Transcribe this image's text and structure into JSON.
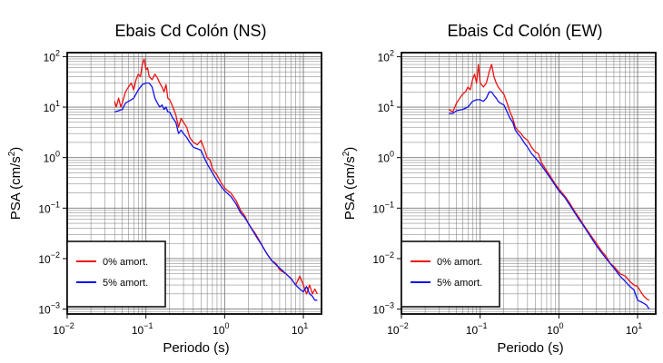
{
  "colors": {
    "undamped": "#ee1111",
    "damped": "#1111ee",
    "grid": "#777777",
    "frame": "#000000"
  },
  "chart_data": [
    {
      "type": "line",
      "title": "Ebais Cd Colón (NS)",
      "xlabel": "Periodo (s)",
      "ylabel_base": "PSA (cm/s",
      "ylabel_sup": "2",
      "ylabel_end": ")",
      "x_scale": "log",
      "y_scale": "log",
      "xlim": [
        0.01,
        17
      ],
      "ylim": [
        0.0008,
        120
      ],
      "x_ticks": [
        {
          "base": "10",
          "exp": "−2",
          "value": 0.01
        },
        {
          "base": "10",
          "exp": "−1",
          "value": 0.1
        },
        {
          "base": "10",
          "exp": "0",
          "value": 1
        },
        {
          "base": "10",
          "exp": "1",
          "value": 10
        }
      ],
      "y_ticks": [
        {
          "base": "10",
          "exp": "2",
          "value": 100
        },
        {
          "base": "10",
          "exp": "1",
          "value": 10
        },
        {
          "base": "10",
          "exp": "0",
          "value": 1
        },
        {
          "base": "10",
          "exp": "−1",
          "value": 0.1
        },
        {
          "base": "10",
          "exp": "−2",
          "value": 0.01
        },
        {
          "base": "10",
          "exp": "−3",
          "value": 0.001
        }
      ],
      "grid": true,
      "legend_position": "bottom-left",
      "series": [
        {
          "name": "0% amort.",
          "color": "#ee1111",
          "points": [
            [
              0.04,
              13
            ],
            [
              0.042,
              10
            ],
            [
              0.045,
              15
            ],
            [
              0.048,
              10
            ],
            [
              0.05,
              12
            ],
            [
              0.055,
              20
            ],
            [
              0.06,
              25
            ],
            [
              0.065,
              30
            ],
            [
              0.07,
              22
            ],
            [
              0.075,
              35
            ],
            [
              0.08,
              45
            ],
            [
              0.085,
              40
            ],
            [
              0.09,
              70
            ],
            [
              0.095,
              90
            ],
            [
              0.1,
              55
            ],
            [
              0.105,
              60
            ],
            [
              0.11,
              40
            ],
            [
              0.12,
              35
            ],
            [
              0.13,
              45
            ],
            [
              0.14,
              38
            ],
            [
              0.15,
              30
            ],
            [
              0.16,
              25
            ],
            [
              0.17,
              20
            ],
            [
              0.18,
              28
            ],
            [
              0.19,
              15
            ],
            [
              0.2,
              14
            ],
            [
              0.22,
              10
            ],
            [
              0.24,
              7
            ],
            [
              0.26,
              4
            ],
            [
              0.28,
              6
            ],
            [
              0.3,
              5
            ],
            [
              0.33,
              4
            ],
            [
              0.36,
              2.5
            ],
            [
              0.4,
              2
            ],
            [
              0.45,
              1.8
            ],
            [
              0.5,
              2.2
            ],
            [
              0.55,
              1.5
            ],
            [
              0.6,
              1
            ],
            [
              0.65,
              0.9
            ],
            [
              0.7,
              0.6
            ],
            [
              0.8,
              0.45
            ],
            [
              0.9,
              0.32
            ],
            [
              1.0,
              0.25
            ],
            [
              1.1,
              0.22
            ],
            [
              1.2,
              0.2
            ],
            [
              1.4,
              0.14
            ],
            [
              1.6,
              0.09
            ],
            [
              1.8,
              0.07
            ],
            [
              2.0,
              0.05
            ],
            [
              2.2,
              0.04
            ],
            [
              2.5,
              0.03
            ],
            [
              2.8,
              0.022
            ],
            [
              3.2,
              0.015
            ],
            [
              3.5,
              0.012
            ],
            [
              4.0,
              0.009
            ],
            [
              4.5,
              0.008
            ],
            [
              5.0,
              0.006
            ],
            [
              6.0,
              0.005
            ],
            [
              7.0,
              0.004
            ],
            [
              8.0,
              0.003
            ],
            [
              9.0,
              0.0045
            ],
            [
              10,
              0.003
            ],
            [
              11,
              0.002
            ],
            [
              12,
              0.003
            ],
            [
              13,
              0.002
            ],
            [
              14,
              0.0025
            ],
            [
              15,
              0.002
            ]
          ]
        },
        {
          "name": "5% amort.",
          "color": "#1111ee",
          "points": [
            [
              0.04,
              8
            ],
            [
              0.045,
              8.5
            ],
            [
              0.05,
              9
            ],
            [
              0.055,
              12
            ],
            [
              0.06,
              13
            ],
            [
              0.065,
              14
            ],
            [
              0.07,
              15
            ],
            [
              0.08,
              22
            ],
            [
              0.09,
              28
            ],
            [
              0.1,
              30
            ],
            [
              0.11,
              30
            ],
            [
              0.12,
              25
            ],
            [
              0.13,
              15
            ],
            [
              0.14,
              12
            ],
            [
              0.15,
              10
            ],
            [
              0.16,
              11
            ],
            [
              0.17,
              9
            ],
            [
              0.18,
              10
            ],
            [
              0.19,
              8
            ],
            [
              0.2,
              8
            ],
            [
              0.22,
              6
            ],
            [
              0.24,
              5
            ],
            [
              0.26,
              3
            ],
            [
              0.28,
              3.5
            ],
            [
              0.3,
              3
            ],
            [
              0.33,
              2.5
            ],
            [
              0.36,
              2
            ],
            [
              0.4,
              1.6
            ],
            [
              0.45,
              1.5
            ],
            [
              0.5,
              1.4
            ],
            [
              0.55,
              1
            ],
            [
              0.6,
              0.75
            ],
            [
              0.7,
              0.5
            ],
            [
              0.8,
              0.35
            ],
            [
              0.9,
              0.27
            ],
            [
              1.0,
              0.22
            ],
            [
              1.2,
              0.17
            ],
            [
              1.4,
              0.12
            ],
            [
              1.6,
              0.08
            ],
            [
              1.8,
              0.065
            ],
            [
              2.0,
              0.05
            ],
            [
              2.5,
              0.028
            ],
            [
              3.0,
              0.018
            ],
            [
              3.5,
              0.012
            ],
            [
              4.0,
              0.009
            ],
            [
              5.0,
              0.0065
            ],
            [
              6.0,
              0.005
            ],
            [
              7.0,
              0.004
            ],
            [
              8.0,
              0.003
            ],
            [
              9.0,
              0.0025
            ],
            [
              10,
              0.0022
            ],
            [
              11,
              0.0028
            ],
            [
              12,
              0.002
            ],
            [
              13,
              0.0018
            ],
            [
              14,
              0.0015
            ],
            [
              15,
              0.0015
            ]
          ]
        }
      ]
    },
    {
      "type": "line",
      "title": "Ebais Cd Colón (EW)",
      "xlabel": "Periodo (s)",
      "ylabel_base": "PSA (cm/s",
      "ylabel_sup": "2",
      "ylabel_end": ")",
      "x_scale": "log",
      "y_scale": "log",
      "xlim": [
        0.01,
        17
      ],
      "ylim": [
        0.0008,
        120
      ],
      "x_ticks": [
        {
          "base": "10",
          "exp": "−2",
          "value": 0.01
        },
        {
          "base": "10",
          "exp": "−1",
          "value": 0.1
        },
        {
          "base": "10",
          "exp": "0",
          "value": 1
        },
        {
          "base": "10",
          "exp": "1",
          "value": 10
        }
      ],
      "y_ticks": [
        {
          "base": "10",
          "exp": "2",
          "value": 100
        },
        {
          "base": "10",
          "exp": "1",
          "value": 10
        },
        {
          "base": "10",
          "exp": "0",
          "value": 1
        },
        {
          "base": "10",
          "exp": "−1",
          "value": 0.1
        },
        {
          "base": "10",
          "exp": "−2",
          "value": 0.01
        },
        {
          "base": "10",
          "exp": "−3",
          "value": 0.001
        }
      ],
      "grid": true,
      "legend_position": "bottom-left",
      "series": [
        {
          "name": "0% amort.",
          "color": "#ee1111",
          "points": [
            [
              0.04,
              9
            ],
            [
              0.045,
              8
            ],
            [
              0.05,
              12
            ],
            [
              0.055,
              15
            ],
            [
              0.06,
              18
            ],
            [
              0.065,
              20
            ],
            [
              0.07,
              25
            ],
            [
              0.075,
              22
            ],
            [
              0.08,
              35
            ],
            [
              0.085,
              45
            ],
            [
              0.09,
              30
            ],
            [
              0.095,
              70
            ],
            [
              0.1,
              30
            ],
            [
              0.11,
              25
            ],
            [
              0.12,
              30
            ],
            [
              0.13,
              50
            ],
            [
              0.14,
              70
            ],
            [
              0.15,
              40
            ],
            [
              0.16,
              30
            ],
            [
              0.17,
              25
            ],
            [
              0.18,
              22
            ],
            [
              0.19,
              20
            ],
            [
              0.2,
              18
            ],
            [
              0.22,
              12
            ],
            [
              0.24,
              8
            ],
            [
              0.26,
              6
            ],
            [
              0.28,
              4
            ],
            [
              0.3,
              3.5
            ],
            [
              0.33,
              3
            ],
            [
              0.36,
              2.5
            ],
            [
              0.4,
              2.2
            ],
            [
              0.45,
              1.6
            ],
            [
              0.5,
              1.3
            ],
            [
              0.55,
              1.2
            ],
            [
              0.6,
              0.8
            ],
            [
              0.7,
              0.55
            ],
            [
              0.8,
              0.4
            ],
            [
              0.9,
              0.3
            ],
            [
              1.0,
              0.24
            ],
            [
              1.2,
              0.17
            ],
            [
              1.4,
              0.12
            ],
            [
              1.6,
              0.085
            ],
            [
              1.8,
              0.065
            ],
            [
              2.0,
              0.05
            ],
            [
              2.5,
              0.03
            ],
            [
              3.0,
              0.02
            ],
            [
              3.5,
              0.014
            ],
            [
              4.0,
              0.011
            ],
            [
              4.5,
              0.008
            ],
            [
              5.0,
              0.007
            ],
            [
              6.0,
              0.005
            ],
            [
              7.0,
              0.0045
            ],
            [
              8.0,
              0.0035
            ],
            [
              9.0,
              0.003
            ],
            [
              10,
              0.0028
            ],
            [
              11,
              0.0022
            ],
            [
              12,
              0.0018
            ],
            [
              13,
              0.0016
            ],
            [
              14,
              0.0015
            ]
          ]
        },
        {
          "name": "5% amort.",
          "color": "#1111ee",
          "points": [
            [
              0.04,
              7.5
            ],
            [
              0.045,
              7.5
            ],
            [
              0.05,
              8.5
            ],
            [
              0.06,
              9
            ],
            [
              0.07,
              10
            ],
            [
              0.08,
              13
            ],
            [
              0.09,
              14
            ],
            [
              0.1,
              14
            ],
            [
              0.11,
              13
            ],
            [
              0.12,
              15
            ],
            [
              0.13,
              20
            ],
            [
              0.14,
              20
            ],
            [
              0.15,
              17
            ],
            [
              0.16,
              15
            ],
            [
              0.17,
              13
            ],
            [
              0.18,
              12
            ],
            [
              0.2,
              11
            ],
            [
              0.22,
              8
            ],
            [
              0.24,
              6
            ],
            [
              0.26,
              5
            ],
            [
              0.28,
              3.5
            ],
            [
              0.3,
              3
            ],
            [
              0.33,
              2.5
            ],
            [
              0.36,
              2
            ],
            [
              0.4,
              1.6
            ],
            [
              0.45,
              1.2
            ],
            [
              0.5,
              1
            ],
            [
              0.6,
              0.7
            ],
            [
              0.7,
              0.5
            ],
            [
              0.8,
              0.37
            ],
            [
              0.9,
              0.28
            ],
            [
              1.0,
              0.22
            ],
            [
              1.2,
              0.16
            ],
            [
              1.4,
              0.11
            ],
            [
              1.6,
              0.08
            ],
            [
              1.8,
              0.06
            ],
            [
              2.0,
              0.048
            ],
            [
              2.5,
              0.028
            ],
            [
              3.0,
              0.018
            ],
            [
              3.5,
              0.013
            ],
            [
              4.0,
              0.01
            ],
            [
              5.0,
              0.0065
            ],
            [
              6.0,
              0.0045
            ],
            [
              7.0,
              0.0035
            ],
            [
              8.0,
              0.0028
            ],
            [
              9.0,
              0.0024
            ],
            [
              10,
              0.0015
            ],
            [
              11,
              0.0014
            ],
            [
              12,
              0.0013
            ],
            [
              13,
              0.0012
            ],
            [
              14,
              0.001
            ]
          ]
        }
      ]
    }
  ]
}
